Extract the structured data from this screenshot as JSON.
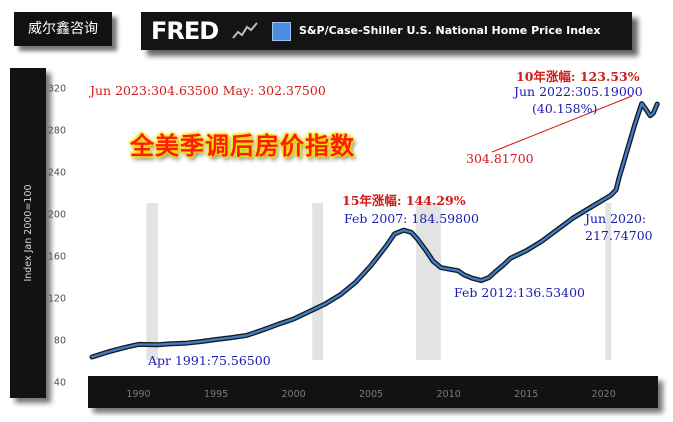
{
  "brand": {
    "label": "威尔鑫咨询"
  },
  "header": {
    "logo": "FRED",
    "series_title": "S&P/Case-Shiller U.S. National Home Price Index"
  },
  "colors": {
    "line": "#3b7fd0",
    "line_shadow": "#1a1a1a",
    "recession": "#e3e3e3",
    "panel": "#121212",
    "title_red": "#ff1a0a",
    "title_glow": "#f5e600"
  },
  "chart_data": {
    "type": "line",
    "title": "",
    "ylabel": "Index Jan 2000=100",
    "xlabel": "",
    "ylim": [
      40,
      320
    ],
    "xlim": [
      1987,
      2023.5
    ],
    "y_ticks": [
      40,
      80,
      120,
      160,
      200,
      240,
      280,
      320
    ],
    "x_ticks": [
      1990,
      1995,
      2000,
      2005,
      2010,
      2015,
      2020
    ],
    "recessions": [
      [
        1990.5,
        1991.25
      ],
      [
        2001.2,
        2001.9
      ],
      [
        2007.9,
        2009.5
      ],
      [
        2020.1,
        2020.35
      ]
    ],
    "series": [
      {
        "x": [
          1987.0,
          1988.0,
          1989.0,
          1990.0,
          1991.25,
          1992.0,
          1993.0,
          1994.0,
          1995.0,
          1996.0,
          1997.0,
          1998.0,
          1999.0,
          2000.0,
          2001.0,
          2002.0,
          2003.0,
          2004.0,
          2005.0,
          2006.0,
          2006.5,
          2007.1,
          2007.6,
          2008.0,
          2008.5,
          2009.0,
          2009.5,
          2010.0,
          2010.6,
          2011.0,
          2011.5,
          2012.1,
          2012.6,
          2013.0,
          2013.5,
          2014.0,
          2015.0,
          2016.0,
          2017.0,
          2018.0,
          2019.0,
          2020.45,
          2020.8,
          2021.0,
          2021.5,
          2022.0,
          2022.45,
          2022.8,
          2023.0,
          2023.2,
          2023.45
        ],
        "values": [
          63.8,
          68.5,
          72.5,
          75.8,
          75.57,
          76.3,
          76.9,
          78.5,
          80.5,
          82.3,
          84.5,
          89.5,
          95.0,
          100.0,
          107.0,
          114.0,
          123.0,
          135.0,
          151.0,
          170.0,
          181.0,
          184.6,
          182.5,
          176.0,
          166.0,
          155.0,
          149.0,
          147.5,
          146.0,
          142.0,
          139.0,
          136.53,
          139.5,
          145.0,
          151.0,
          158.0,
          165.0,
          174.0,
          185.0,
          196.0,
          205.0,
          217.75,
          223.0,
          235.0,
          260.0,
          285.0,
          305.19,
          298.0,
          293.6,
          296.0,
          304.64
        ]
      }
    ],
    "annotations": {
      "header_line": "Jun 2023:304.63500  May: 302.37500",
      "title": "全美季调后房价指数",
      "rise_10y": "10年涨幅: 123.53%",
      "peak_2022": "Jun 2022:305.19000",
      "pct_2022": "(40.158%)",
      "value_mid": "304.81700",
      "rise_15y": "15年涨幅: 144.29%",
      "peak_2007": "Feb 2007: 184.59800",
      "trough_2012": "Feb 2012:136.53400",
      "point_2020_a": "Jun 2020:",
      "point_2020_b": "217.74700",
      "point_1991": "Apr 1991:75.56500"
    }
  }
}
